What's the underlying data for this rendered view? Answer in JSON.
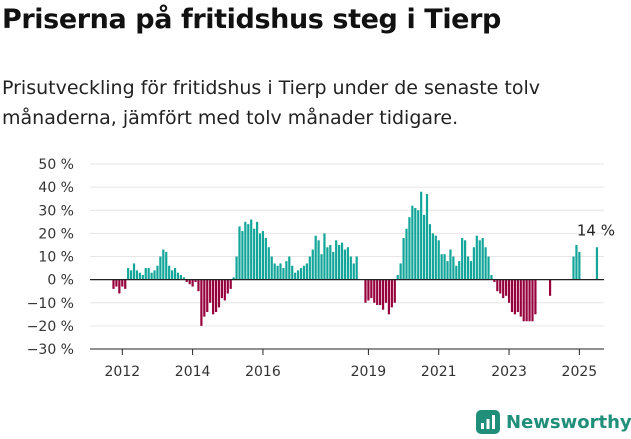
{
  "header": {
    "title": "Priserna på fritidshus steg i Tierp",
    "subtitle": "Prisutveckling för fritidshus i Tierp under de senaste tolv månaderna, jämfört med tolv månader tidigare."
  },
  "brand": {
    "name": "Newsworthy",
    "logo_icon": "newsworthy-chart-icon",
    "color": "#1f8f7a"
  },
  "chart_data": {
    "type": "bar",
    "unit": "%",
    "ylim": [
      -30,
      50
    ],
    "yticks": [
      50,
      40,
      30,
      20,
      10,
      0,
      -10,
      -20,
      -30
    ],
    "ytick_labels": [
      "50 %",
      "40 %",
      "30 %",
      "20 %",
      "10 %",
      "0 %",
      "−10 %",
      "−20 %",
      "−30 %"
    ],
    "xticks": [
      {
        "index": 3,
        "label": "2012"
      },
      {
        "index": 27,
        "label": "2014"
      },
      {
        "index": 51,
        "label": "2016"
      },
      {
        "index": 87,
        "label": "2019"
      },
      {
        "index": 111,
        "label": "2021"
      },
      {
        "index": 135,
        "label": "2023"
      },
      {
        "index": 159,
        "label": "2025"
      }
    ],
    "grid": true,
    "colors": {
      "positive": "#12a59a",
      "negative": "#96003c"
    },
    "last_label": "14 %",
    "values": [
      -4,
      -3,
      -6,
      -3,
      -4,
      5,
      4,
      7,
      4,
      3,
      2,
      5,
      5,
      3,
      4,
      6,
      10,
      13,
      12,
      6,
      4,
      5,
      3,
      2,
      1,
      -1,
      -2,
      -3,
      -1,
      -5,
      -20,
      -16,
      -14,
      -10,
      -15,
      -14,
      -12,
      -8,
      -9,
      -6,
      -4,
      1,
      10,
      23,
      21,
      25,
      24,
      26,
      22,
      25,
      20,
      21,
      18,
      14,
      10,
      7,
      6,
      7,
      5,
      8,
      10,
      6,
      3,
      4,
      5,
      6,
      7,
      10,
      13,
      19,
      17,
      11,
      20,
      14,
      15,
      12,
      17,
      15,
      16,
      13,
      14,
      10,
      7,
      10,
      null,
      null,
      -10,
      -9,
      -8,
      -10,
      -11,
      -11,
      -13,
      -10,
      -15,
      -12,
      -10,
      2,
      7,
      18,
      22,
      27,
      32,
      31,
      30,
      38,
      28,
      37,
      24,
      20,
      19,
      17,
      11,
      11,
      8,
      13,
      10,
      6,
      8,
      18,
      17,
      10,
      8,
      14,
      19,
      17,
      18,
      14,
      10,
      2,
      -1,
      -5,
      -6,
      -8,
      -7,
      -10,
      -14,
      -15,
      -14,
      -16,
      -18,
      -18,
      -18,
      -18,
      -15,
      null,
      null,
      null,
      null,
      -7,
      null,
      null,
      null,
      null,
      null,
      null,
      null,
      10,
      15,
      12,
      null,
      null,
      null,
      null,
      null,
      14
    ]
  }
}
